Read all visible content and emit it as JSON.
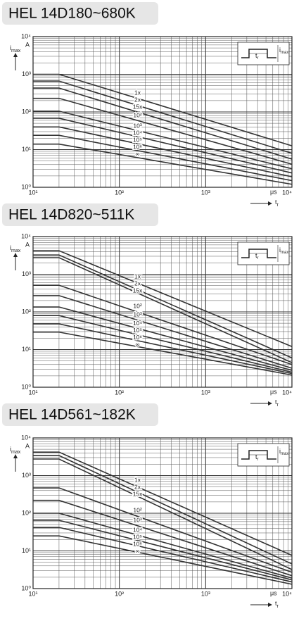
{
  "chart_data": [
    {
      "type": "line",
      "title": "HEL 14D180~680K",
      "log_x": true,
      "log_y": true,
      "grid": true,
      "color": "#333333",
      "y_label": "i",
      "y_label_sub": "max",
      "y_unit": "A",
      "x_label": "t",
      "x_label_sub": "r",
      "x_unit": "μs",
      "xlim": [
        10,
        10000
      ],
      "ylim": [
        1,
        10000
      ],
      "xticks": [
        {
          "value": 10,
          "label": "10¹"
        },
        {
          "value": 100,
          "label": "10²"
        },
        {
          "value": 1000,
          "label": "10³"
        },
        {
          "value": 10000,
          "label": "10⁴"
        }
      ],
      "yticks": [
        {
          "value": 1,
          "label": "10⁰"
        },
        {
          "value": 10,
          "label": "10¹"
        },
        {
          "value": 100,
          "label": "10²"
        },
        {
          "value": 1000,
          "label": "10³"
        },
        {
          "value": 10000,
          "label": "10⁴"
        }
      ],
      "xminorticks": [
        20,
        30,
        40,
        50,
        60,
        70,
        80,
        90,
        200,
        300,
        400,
        500,
        600,
        700,
        800,
        900,
        2000,
        3000,
        4000,
        5000,
        6000,
        7000,
        8000,
        9000
      ],
      "yminorticks": [
        2,
        3,
        4,
        5,
        6,
        7,
        8,
        9,
        20,
        30,
        40,
        50,
        60,
        70,
        80,
        90,
        200,
        300,
        400,
        500,
        600,
        700,
        800,
        900,
        2000,
        3000,
        4000,
        5000,
        6000,
        7000,
        8000,
        9000
      ],
      "x": [
        10,
        20,
        10000
      ],
      "series": [
        {
          "name": "1x",
          "values": [
            1000,
            1000,
            12.6
          ]
        },
        {
          "name": "2x",
          "values": [
            660,
            660,
            8
          ]
        },
        {
          "name": "15x",
          "values": [
            430,
            430,
            5.6
          ]
        },
        {
          "name": "10²",
          "values": [
            230,
            230,
            4.1
          ]
        },
        {
          "name": "10³",
          "values": [
            105,
            105,
            3.1
          ]
        },
        {
          "name": "10⁴",
          "values": [
            68,
            68,
            2.4
          ]
        },
        {
          "name": "10⁵",
          "values": [
            40,
            40,
            1.9
          ]
        },
        {
          "name": "10⁶",
          "values": [
            24,
            24,
            1.5
          ]
        },
        {
          "name": "∞",
          "values": [
            14,
            14,
            1.2
          ]
        }
      ]
    },
    {
      "type": "line",
      "title": "HEL 14D820~511K",
      "log_x": true,
      "log_y": true,
      "grid": true,
      "color": "#333333",
      "y_label": "i",
      "y_label_sub": "max",
      "y_unit": "A",
      "x_label": "t",
      "x_label_sub": "r",
      "x_unit": "μs",
      "xlim": [
        10,
        10000
      ],
      "ylim": [
        1,
        10000
      ],
      "xticks": [
        {
          "value": 10,
          "label": "10¹"
        },
        {
          "value": 100,
          "label": "10²"
        },
        {
          "value": 1000,
          "label": "10³"
        },
        {
          "value": 10000,
          "label": "10⁴"
        }
      ],
      "yticks": [
        {
          "value": 1,
          "label": "10⁰"
        },
        {
          "value": 10,
          "label": "10¹"
        },
        {
          "value": 100,
          "label": "10²"
        },
        {
          "value": 1000,
          "label": "10³"
        },
        {
          "value": 10000,
          "label": "10⁴"
        }
      ],
      "xminorticks": [
        20,
        30,
        40,
        50,
        60,
        70,
        80,
        90,
        200,
        300,
        400,
        500,
        600,
        700,
        800,
        900,
        2000,
        3000,
        4000,
        5000,
        6000,
        7000,
        8000,
        9000
      ],
      "yminorticks": [
        2,
        3,
        4,
        5,
        6,
        7,
        8,
        9,
        20,
        30,
        40,
        50,
        60,
        70,
        80,
        90,
        200,
        300,
        400,
        500,
        600,
        700,
        800,
        900,
        2000,
        3000,
        4000,
        5000,
        6000,
        7000,
        8000,
        9000
      ],
      "x": [
        10,
        20,
        10000
      ],
      "series": [
        {
          "name": "1x",
          "values": [
            4200,
            4200,
            12
          ]
        },
        {
          "name": "2x",
          "values": [
            3250,
            3250,
            6
          ]
        },
        {
          "name": "15x",
          "values": [
            2750,
            2750,
            4.5
          ]
        },
        {
          "name": "10²",
          "values": [
            510,
            510,
            4
          ]
        },
        {
          "name": "10³",
          "values": [
            270,
            270,
            3.2
          ]
        },
        {
          "name": "10⁴",
          "values": [
            135,
            135,
            2.8
          ]
        },
        {
          "name": "10⁵",
          "values": [
            80,
            80,
            2.5
          ]
        },
        {
          "name": "10⁶",
          "values": [
            48,
            48,
            2.3
          ]
        },
        {
          "name": "∞",
          "values": [
            29,
            29,
            2.1
          ]
        }
      ]
    },
    {
      "type": "line",
      "title": "HEL 14D561~182K",
      "log_x": true,
      "log_y": true,
      "grid": true,
      "color": "#333333",
      "y_label": "i",
      "y_label_sub": "max",
      "y_unit": "A",
      "x_label": "t",
      "x_label_sub": "r",
      "x_unit": "μs",
      "xlim": [
        10,
        10000
      ],
      "ylim": [
        1,
        10000
      ],
      "xticks": [
        {
          "value": 10,
          "label": "10¹"
        },
        {
          "value": 100,
          "label": "10²"
        },
        {
          "value": 1000,
          "label": "10³"
        },
        {
          "value": 10000,
          "label": "10⁴"
        }
      ],
      "yticks": [
        {
          "value": 1,
          "label": "10⁰"
        },
        {
          "value": 10,
          "label": "10¹"
        },
        {
          "value": 100,
          "label": "10²"
        },
        {
          "value": 1000,
          "label": "10³"
        },
        {
          "value": 10000,
          "label": "10⁴"
        }
      ],
      "xminorticks": [
        20,
        30,
        40,
        50,
        60,
        70,
        80,
        90,
        200,
        300,
        400,
        500,
        600,
        700,
        800,
        900,
        2000,
        3000,
        4000,
        5000,
        6000,
        7000,
        8000,
        9000
      ],
      "yminorticks": [
        2,
        3,
        4,
        5,
        6,
        7,
        8,
        9,
        20,
        30,
        40,
        50,
        60,
        70,
        80,
        90,
        200,
        300,
        400,
        500,
        600,
        700,
        800,
        900,
        2000,
        3000,
        4000,
        5000,
        6000,
        7000,
        8000,
        9000
      ],
      "x": [
        10,
        20,
        10000
      ],
      "series": [
        {
          "name": "1x",
          "values": [
            4200,
            4200,
            7.6
          ]
        },
        {
          "name": "2x",
          "values": [
            3400,
            3400,
            4.5
          ]
        },
        {
          "name": "15x",
          "values": [
            2750,
            2750,
            3.2
          ]
        },
        {
          "name": "10²",
          "values": [
            470,
            470,
            2.7
          ]
        },
        {
          "name": "10³",
          "values": [
            220,
            220,
            2.2
          ]
        },
        {
          "name": "10⁴",
          "values": [
            100,
            100,
            1.9
          ]
        },
        {
          "name": "10⁵",
          "values": [
            65,
            65,
            1.7
          ]
        },
        {
          "name": "10⁶",
          "values": [
            42,
            42,
            1.5
          ]
        },
        {
          "name": "∞",
          "values": [
            25,
            25,
            1.3
          ]
        }
      ]
    }
  ]
}
